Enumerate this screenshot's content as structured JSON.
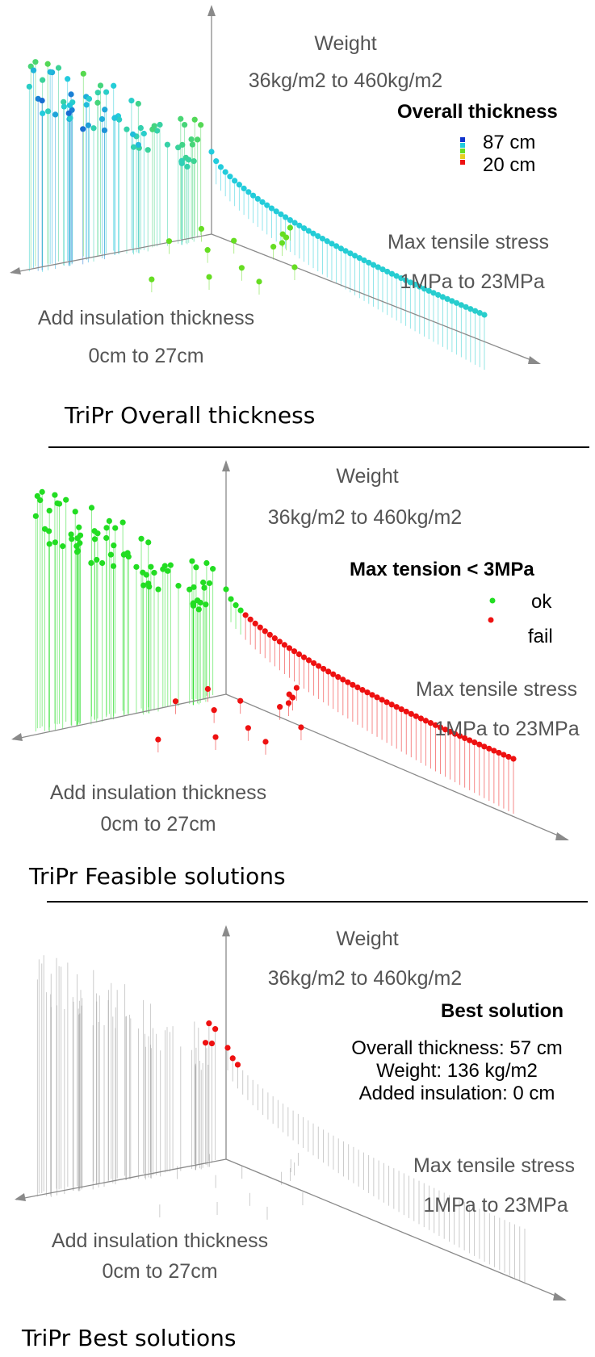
{
  "chart_data": [
    {
      "type": "scatter",
      "title": "",
      "caption": "TriPr Overall thickness",
      "axes": {
        "vertical": {
          "label": "Weight",
          "range_label": "36kg/m2 to 460kg/m2",
          "range": [
            36,
            460
          ],
          "unit": "kg/m2"
        },
        "right": {
          "label": "Max tensile stress",
          "range_label": "1MPa to 23MPa",
          "range": [
            1,
            23
          ],
          "unit": "MPa"
        },
        "left": {
          "label": "Add insulation thickness",
          "range_label": "0cm to 27cm",
          "range": [
            0,
            27
          ],
          "unit": "cm"
        }
      },
      "legend": {
        "title": "Overall thickness",
        "placement": "top-right",
        "scale": "color gradient blue-cyan-green-yellow-red",
        "entries": [
          "87 cm",
          "20 cm"
        ],
        "range": [
          20,
          87
        ]
      },
      "color_encoding": "overall thickness",
      "grid": false
    },
    {
      "type": "scatter",
      "title": "",
      "caption": "TriPr Feasible solutions",
      "axes": {
        "vertical": {
          "label": "Weight",
          "range_label": "36kg/m2 to 460kg/m2",
          "range": [
            36,
            460
          ],
          "unit": "kg/m2"
        },
        "right": {
          "label": "Max tensile stress",
          "range_label": "1MPa to 23MPa",
          "range": [
            1,
            23
          ],
          "unit": "MPa"
        },
        "left": {
          "label": "Add insulation thickness",
          "range_label": "0cm to 27cm",
          "range": [
            0,
            27
          ],
          "unit": "cm"
        }
      },
      "legend": {
        "title": "Max tension < 3MPa",
        "placement": "top-right",
        "entries": [
          {
            "label": "ok",
            "color": "#22dd22"
          },
          {
            "label": "fail",
            "color": "#ee1111"
          }
        ]
      },
      "grid": false
    },
    {
      "type": "scatter",
      "title": "",
      "caption": "TriPr Best solutions",
      "axes": {
        "vertical": {
          "label": "Weight",
          "range_label": "36kg/m2 to 460kg/m2",
          "range": [
            36,
            460
          ],
          "unit": "kg/m2"
        },
        "right": {
          "label": "Max tensile stress",
          "range_label": "1MPa to 23MPa",
          "range": [
            1,
            23
          ],
          "unit": "MPa"
        },
        "left": {
          "label": "Add insulation thickness",
          "range_label": "0cm to 27cm",
          "range": [
            0,
            27
          ],
          "unit": "cm"
        }
      },
      "best_solution": {
        "title": "Best solution",
        "lines": [
          "Overall thickness: 57 cm",
          "Weight: 136 kg/m2",
          "Added insulation: 0 cm"
        ],
        "overall_thickness_cm": 57,
        "weight_kg_m2": 136,
        "added_insulation_cm": 0
      },
      "highlight_color": "#ee1111",
      "grid": false
    }
  ],
  "colors": {
    "axis": "#8a8a8a",
    "ok": "#22dd22",
    "fail": "#ee1111",
    "neutral": "#999999",
    "thickness_max": "#1133cc",
    "thickness_min": "#ee1111"
  }
}
